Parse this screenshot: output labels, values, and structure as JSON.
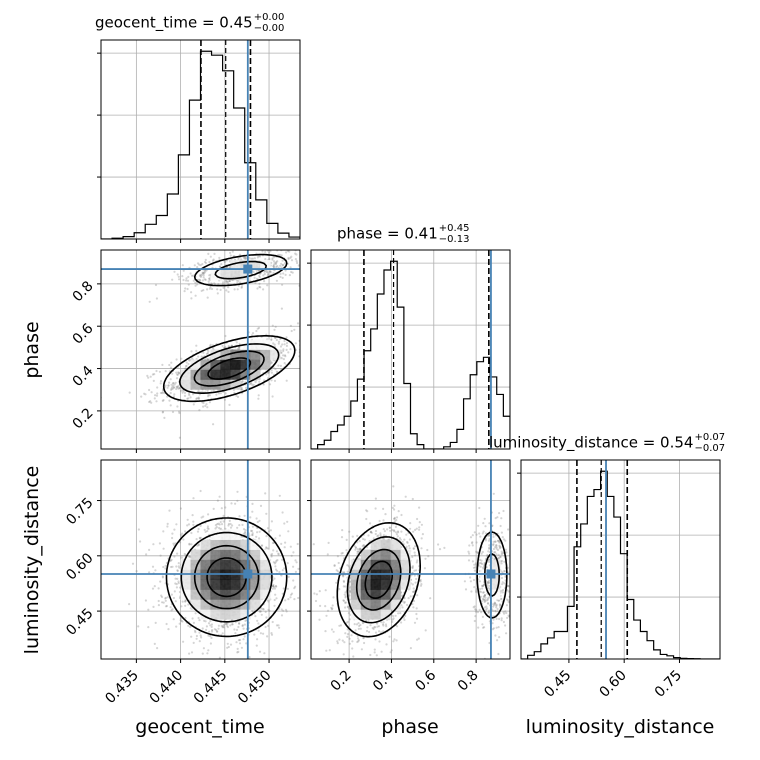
{
  "chart_data": {
    "type": "corner",
    "truth_color": "#4682b4",
    "parameters": [
      {
        "name": "geocent_time",
        "axis_label": "geocent_time",
        "title": {
          "prefix": "geocent_time = 0.45",
          "plus": "+0.00",
          "minus": "−0.00"
        },
        "range": [
          0.431,
          0.4535
        ],
        "ticks": [
          0.435,
          0.44,
          0.445,
          0.45
        ],
        "tick_labels": [
          "0.435",
          "0.440",
          "0.445",
          "0.450"
        ],
        "quantiles": [
          0.4423,
          0.4451,
          0.4479
        ],
        "truth": 0.4476,
        "hist": {
          "bin_edges": [
            0.431,
            0.43225,
            0.4335,
            0.43475,
            0.436,
            0.43725,
            0.4385,
            0.43975,
            0.441,
            0.44225,
            0.4435,
            0.44475,
            0.446,
            0.44725,
            0.4485,
            0.44975,
            0.451,
            0.45225,
            0.4535
          ],
          "counts": [
            0,
            0.4,
            1.2,
            3.2,
            7.5,
            12,
            23,
            43,
            71,
            96,
            94,
            86,
            67,
            39,
            20,
            8,
            3,
            1
          ]
        }
      },
      {
        "name": "phase",
        "axis_label": "phase",
        "title": {
          "prefix": "phase = 0.41",
          "plus": "+0.45",
          "minus": "−0.13"
        },
        "range": [
          0.02,
          0.96
        ],
        "ticks": [
          0.2,
          0.4,
          0.6,
          0.8
        ],
        "tick_labels": [
          "0.2",
          "0.4",
          "0.6",
          "0.8"
        ],
        "quantiles": [
          0.27,
          0.41,
          0.86
        ],
        "truth": 0.87,
        "hist": {
          "bin_edges": [
            0.02,
            0.0513,
            0.0827,
            0.114,
            0.1453,
            0.1767,
            0.208,
            0.2393,
            0.2707,
            0.302,
            0.3333,
            0.3647,
            0.396,
            0.4273,
            0.4587,
            0.49,
            0.5213,
            0.5527,
            0.584,
            0.6153,
            0.6467,
            0.678,
            0.7093,
            0.7407,
            0.772,
            0.8033,
            0.8347,
            0.866,
            0.8973,
            0.9287,
            0.96
          ],
          "counts": [
            0,
            2,
            4,
            8,
            11,
            15,
            22,
            32,
            45,
            55,
            71,
            82,
            86,
            65,
            30,
            7,
            2,
            0,
            0,
            0,
            1,
            3,
            9,
            23,
            34,
            40,
            42,
            33,
            25,
            15
          ]
        }
      },
      {
        "name": "luminosity_distance",
        "axis_label": "luminosity_distance",
        "title": {
          "prefix": "luminosity_distance = 0.54",
          "plus": "+0.07",
          "minus": "−0.07"
        },
        "range": [
          0.32,
          0.86
        ],
        "ticks": [
          0.45,
          0.6,
          0.75
        ],
        "tick_labels": [
          "0.45",
          "0.60",
          "0.75"
        ],
        "quantiles": [
          0.4717,
          0.5377,
          0.6083
        ],
        "truth": 0.5507,
        "hist": {
          "bin_edges": [
            0.32,
            0.338,
            0.356,
            0.374,
            0.392,
            0.41,
            0.428,
            0.446,
            0.464,
            0.482,
            0.5,
            0.518,
            0.536,
            0.554,
            0.572,
            0.59,
            0.608,
            0.626,
            0.644,
            0.662,
            0.68,
            0.698,
            0.716,
            0.734,
            0.752,
            0.77,
            0.788,
            0.806,
            0.824,
            0.842,
            0.86
          ],
          "counts": [
            0,
            1.6,
            3.2,
            6.6,
            9.2,
            12,
            12,
            23,
            49,
            59,
            71,
            74,
            82,
            71,
            62,
            46,
            26,
            17,
            12,
            8,
            4,
            2,
            1.4,
            0.6,
            0.3,
            0.2,
            0.1,
            0,
            0,
            0
          ]
        }
      }
    ],
    "pairs": [
      {
        "x": "geocent_time",
        "y": "phase",
        "blobs": [
          {
            "cx": 0.4455,
            "cy": 0.4,
            "sx": 0.0036,
            "sy": 0.075,
            "corr": 0.55,
            "w": 1.0
          },
          {
            "cx": 0.4468,
            "cy": 0.865,
            "sx": 0.0032,
            "sy": 0.045,
            "corr": 0.45,
            "w": 0.45
          }
        ]
      },
      {
        "x": "geocent_time",
        "y": "luminosity_distance",
        "blobs": [
          {
            "cx": 0.4452,
            "cy": 0.542,
            "sx": 0.0033,
            "sy": 0.078,
            "corr": 0.0,
            "w": 1.0
          }
        ]
      },
      {
        "x": "phase",
        "y": "luminosity_distance",
        "blobs": [
          {
            "cx": 0.34,
            "cy": 0.535,
            "sx": 0.095,
            "sy": 0.075,
            "corr": 0.25,
            "w": 1.0
          },
          {
            "cx": 0.875,
            "cy": 0.548,
            "sx": 0.045,
            "sy": 0.075,
            "corr": 0.0,
            "w": 0.4
          }
        ]
      }
    ],
    "grid": true
  }
}
